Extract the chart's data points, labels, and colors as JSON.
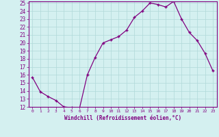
{
  "x": [
    0,
    1,
    2,
    3,
    4,
    5,
    6,
    7,
    8,
    9,
    10,
    11,
    12,
    13,
    14,
    15,
    16,
    17,
    18,
    19,
    20,
    21,
    22,
    23
  ],
  "y": [
    15.7,
    13.9,
    13.3,
    12.8,
    12.0,
    11.9,
    11.8,
    16.0,
    18.2,
    20.0,
    20.4,
    20.8,
    21.6,
    23.2,
    24.0,
    25.0,
    24.8,
    24.5,
    25.2,
    23.0,
    21.3,
    20.3,
    18.7,
    16.5
  ],
  "xlabel": "Windchill (Refroidissement éolien,°C)",
  "ylim": [
    12,
    25
  ],
  "xlim": [
    -0.5,
    23.5
  ],
  "yticks": [
    12,
    13,
    14,
    15,
    16,
    17,
    18,
    19,
    20,
    21,
    22,
    23,
    24,
    25
  ],
  "xticks": [
    0,
    1,
    2,
    3,
    4,
    5,
    6,
    7,
    8,
    9,
    10,
    11,
    12,
    13,
    14,
    15,
    16,
    17,
    18,
    19,
    20,
    21,
    22,
    23
  ],
  "line_color": "#800080",
  "marker": "+",
  "bg_color": "#d4f0f0",
  "grid_color": "#b0d8d8",
  "tick_color": "#800080",
  "label_color": "#800080",
  "font_name": "monospace"
}
